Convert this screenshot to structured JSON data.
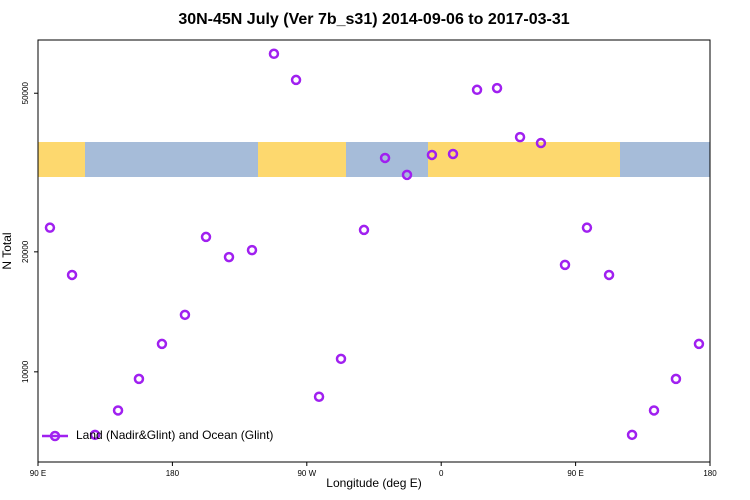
{
  "chart_data": {
    "type": "scatter",
    "title": "30N-45N July (Ver 7b_s31)   2014-09-06 to 2017-03-31",
    "x_label": "Longitude (deg E)",
    "y_label": "N Total",
    "xlim": [
      90,
      540
    ],
    "xticks": [
      {
        "value": 90,
        "label": "90 E"
      },
      {
        "value": 180,
        "label": "180"
      },
      {
        "value": 270,
        "label": "90 W"
      },
      {
        "value": 360,
        "label": "0"
      },
      {
        "value": 450,
        "label": "90 E"
      },
      {
        "value": 540,
        "label": "180"
      }
    ],
    "ylim": [
      5940,
      68000
    ],
    "yticks": [
      10000,
      20000,
      50000
    ],
    "log_y": true,
    "legend": "bottom-left",
    "series": [
      {
        "name": "Land (Nadir&Glint) and Ocean (Glint)",
        "color": "#a020f0",
        "x": [
          98.0,
          112.8,
          128.2,
          143.6,
          157.6,
          173.0,
          188.4,
          202.5,
          217.9,
          233.3,
          248.0,
          262.8,
          278.2,
          292.9,
          308.3,
          322.4,
          337.1,
          353.8,
          367.9,
          384.0,
          397.4,
          412.8,
          426.8,
          442.9,
          457.6,
          472.4,
          487.8,
          502.5,
          517.2,
          532.6
        ],
        "values": [
          23000,
          17500,
          6950,
          8000,
          9600,
          11750,
          13900,
          21800,
          19400,
          20200,
          62800,
          54000,
          8660,
          10780,
          22700,
          34400,
          31200,
          35000,
          35200,
          51000,
          51500,
          38800,
          37500,
          18550,
          23000,
          17500,
          6950,
          8000,
          9600,
          11750
        ]
      }
    ]
  }
}
